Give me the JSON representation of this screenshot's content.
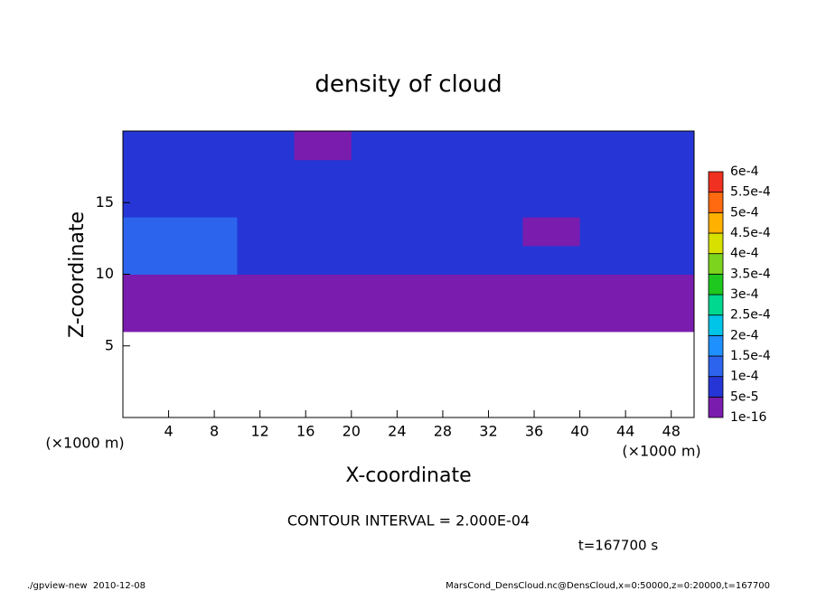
{
  "chart_data": {
    "type": "contour",
    "title": "density of cloud",
    "x_label": "X-coordinate",
    "y_label": "Z-coordinate",
    "x_unit": "(×1000 m)",
    "y_unit": "(×1000 m)",
    "contour_interval": "CONTOUR INTERVAL = 2.000E-04",
    "time_label": "t=167700 s",
    "footer_left": "./gpview-new  2010-12-08",
    "footer_right": "MarsCond_DensCloud.nc@DensCloud,x=0:50000,z=0:20000,t=167700",
    "xlim": [
      0,
      50
    ],
    "ylim": [
      0,
      20
    ],
    "xticks": [
      4,
      8,
      12,
      16,
      20,
      24,
      28,
      32,
      36,
      40,
      44,
      48
    ],
    "yticks": [
      5,
      10,
      15
    ],
    "x": [
      2.5,
      7.5,
      12.5,
      17.5,
      22.5,
      27.5,
      32.5,
      37.5,
      42.5,
      47.5
    ],
    "y": [
      1,
      3,
      5,
      7,
      9,
      11,
      13,
      15,
      17,
      19
    ],
    "values": [
      [
        null,
        null,
        null,
        null,
        null,
        null,
        null,
        null,
        null,
        null
      ],
      [
        null,
        null,
        null,
        null,
        null,
        null,
        null,
        null,
        null,
        null
      ],
      [
        null,
        null,
        null,
        null,
        null,
        null,
        null,
        null,
        null,
        null
      ],
      [
        2e-05,
        2e-05,
        2e-05,
        2e-05,
        2e-05,
        2e-05,
        2e-05,
        2e-05,
        2e-05,
        2e-05
      ],
      [
        2e-05,
        2e-05,
        2e-05,
        2e-05,
        2e-05,
        2e-05,
        2e-05,
        2e-05,
        2e-05,
        2e-05
      ],
      [
        0.00012,
        0.00012,
        9e-05,
        9e-05,
        9e-05,
        9e-05,
        9e-05,
        9e-05,
        9e-05,
        9e-05
      ],
      [
        0.00012,
        0.00012,
        9e-05,
        9e-05,
        9e-05,
        9e-05,
        9e-05,
        2e-05,
        9e-05,
        9e-05
      ],
      [
        9e-05,
        9e-05,
        9e-05,
        9e-05,
        8e-05,
        9e-05,
        9e-05,
        9e-05,
        9e-05,
        9e-05
      ],
      [
        8e-05,
        8e-05,
        8e-05,
        9e-05,
        8e-05,
        8e-05,
        8e-05,
        9e-05,
        8e-05,
        8e-05
      ],
      [
        8e-05,
        8e-05,
        8e-05,
        2e-05,
        8e-05,
        8e-05,
        8e-05,
        8e-05,
        8e-05,
        8e-05
      ]
    ],
    "levels": [
      {
        "value": 1e-16,
        "label": "1e-16"
      },
      {
        "value": 5e-05,
        "label": "5e-5"
      },
      {
        "value": 0.0001,
        "label": "1e-4"
      },
      {
        "value": 0.00015,
        "label": "1.5e-4"
      },
      {
        "value": 0.0002,
        "label": "2e-4"
      },
      {
        "value": 0.00025,
        "label": "2.5e-4"
      },
      {
        "value": 0.0003,
        "label": "3e-4"
      },
      {
        "value": 0.00035,
        "label": "3.5e-4"
      },
      {
        "value": 0.0004,
        "label": "4e-4"
      },
      {
        "value": 0.00045,
        "label": "4.5e-4"
      },
      {
        "value": 0.0005,
        "label": "5e-4"
      },
      {
        "value": 0.00055,
        "label": "5.5e-4"
      },
      {
        "value": 0.0006,
        "label": "6e-4"
      }
    ],
    "level_colors": [
      "#7a1cae",
      "#2636d6",
      "#2c64ee",
      "#1e90ff",
      "#00c4e8",
      "#00d890",
      "#1ec81e",
      "#7cd41e",
      "#d8e000",
      "#ffb000",
      "#ff6a10",
      "#f03020"
    ],
    "missing_color": "#ffffff"
  }
}
